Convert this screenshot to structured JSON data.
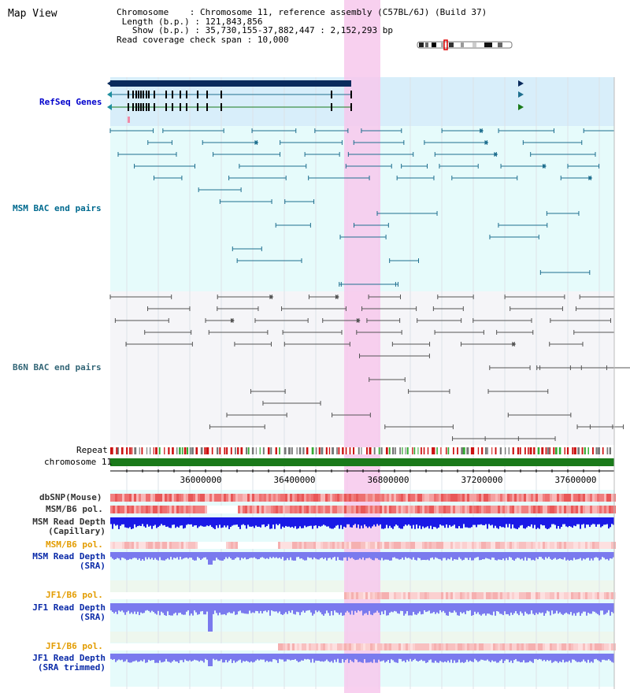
{
  "page": {
    "title": "Map View"
  },
  "info": {
    "chromosome_key": "Chromosome",
    "chromosome_val": "Chromosome 11, reference assembly (C57BL/6J) (Build 37)",
    "length_key": "Length (b.p.)",
    "length_val": "121,843,856",
    "show_key": "Show (b.p.)",
    "show_val": "35,730,155-37,882,447 : 2,152,293 bp",
    "span_key": "Read coverage check span",
    "span_val": "10,000"
  },
  "tracks": {
    "refseq": "RefSeq Genes",
    "msm_bac": "MSM BAC end pairs",
    "b6n_bac": "B6N BAC end pairs",
    "repeat": "Repeat",
    "chromosome": "chromosome 11",
    "dbsnp": "dbSNP(Mouse)",
    "msm_pol": "MSM/B6 pol.",
    "msm_depth_cap_1": "MSM Read Depth",
    "msm_depth_cap_2": "(Capillary)",
    "msm_pol_2": "MSM/B6 pol.",
    "msm_depth_sra_1": "MSM Read Depth",
    "msm_depth_sra_2": "(SRA)",
    "jf1_pol": "JF1/B6 pol.",
    "jf1_depth_1": "JF1 Read Depth",
    "jf1_depth_2": "(SRA)",
    "jf1_pol_2": "JF1/B6 pol.",
    "jf1_trim_1": "JF1 Read Depth",
    "jf1_trim_2": "(SRA trimmed)"
  },
  "axis": {
    "tick_labels": [
      "36000000",
      "36400000",
      "36800000",
      "37200000",
      "37600000"
    ]
  },
  "colors": {
    "highlight": "#f7c8ec",
    "refseq_bg": "#d8eefa",
    "msm_bg": "#e6fbfb",
    "b6n_bg": "#f5f5f8",
    "gene_dark": "#0a2a5c",
    "msm_line": "#1f6f8f",
    "b6n_line": "#555555",
    "chrom_green": "#1a7a1a",
    "depth_blue": "#1a1ae6",
    "depth_light": "#7a7aee"
  }
}
